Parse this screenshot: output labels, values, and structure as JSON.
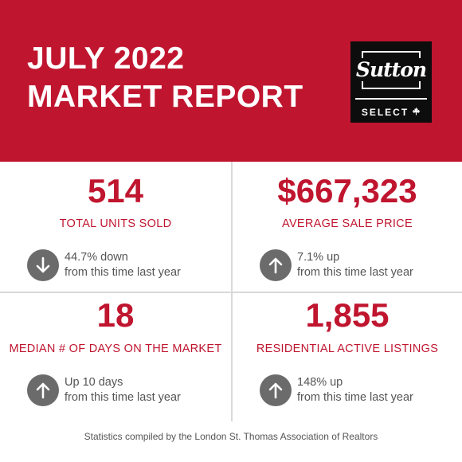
{
  "header": {
    "title_line1": "JULY 2022",
    "title_line2": "MARKET REPORT",
    "background_color": "#c0152f"
  },
  "logo": {
    "wordmark": "Sutton",
    "subtitle": "SELECT",
    "icon": "maple-leaf-icon"
  },
  "stats": [
    {
      "value": "514",
      "label": "TOTAL UNITS SOLD",
      "direction": "down",
      "icon": "arrow-down-icon",
      "change_line1": "44.7% down",
      "change_line2": "from this time last year"
    },
    {
      "value": "$667,323",
      "label": "AVERAGE SALE PRICE",
      "direction": "up",
      "icon": "arrow-up-icon",
      "change_line1": "7.1% up",
      "change_line2": "from this time last year"
    },
    {
      "value": "18",
      "label": "MEDIAN # OF DAYS ON THE MARKET",
      "direction": "up",
      "icon": "arrow-up-icon",
      "change_line1": "Up 10 days",
      "change_line2": "from this time last year"
    },
    {
      "value": "1,855",
      "label": "RESIDENTIAL ACTIVE LISTINGS",
      "direction": "up",
      "icon": "arrow-up-icon",
      "change_line1": "148% up",
      "change_line2": "from this time last year"
    }
  ],
  "footer": {
    "text": "Statistics compiled by the London St. Thomas Association of Realtors"
  },
  "colors": {
    "accent": "#c0152f",
    "icon_gray": "#6b6b6b",
    "text_gray": "#555555"
  }
}
